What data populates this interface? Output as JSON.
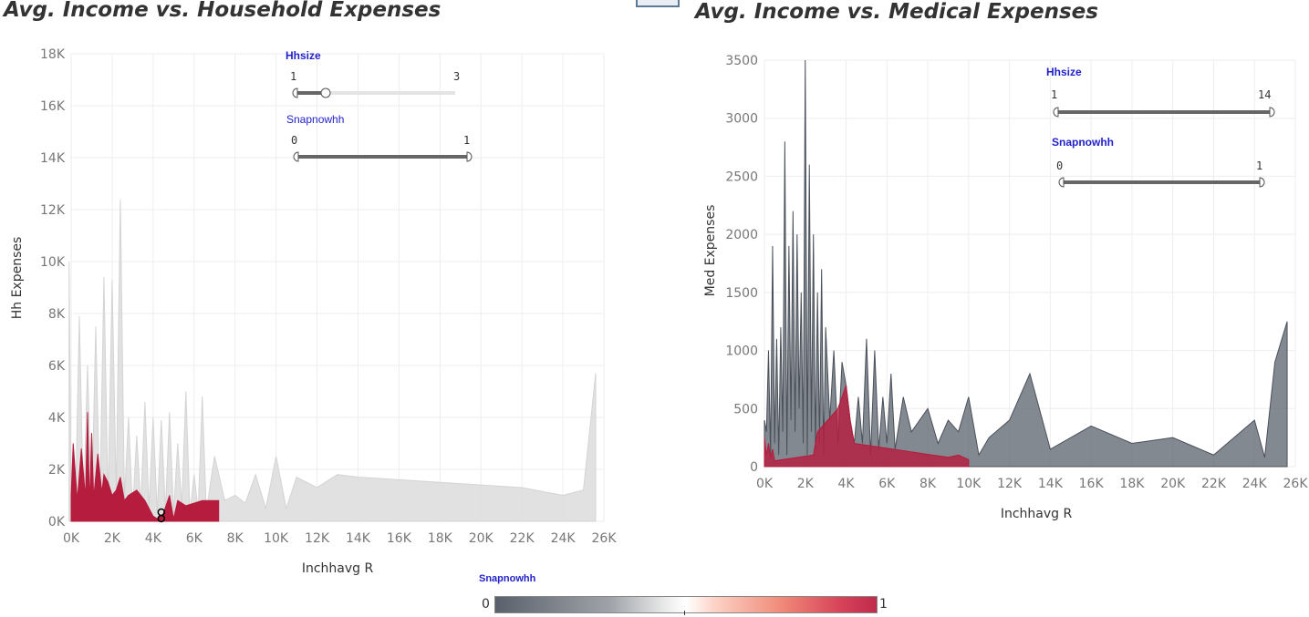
{
  "titles": {
    "left": "Avg. Income vs. Household Expenses",
    "right": "Avg. Income vs. Medical Expenses"
  },
  "colors": {
    "snap1": "#b51c3d",
    "snap0_left": "#dedede",
    "snap0_right": "#5a616c",
    "grid": "#eeeeee"
  },
  "chart_data": [
    {
      "type": "area",
      "title": "Avg. Income vs. Household Expenses",
      "xlabel": "Inchhavg R",
      "ylabel": "Hh Expenses",
      "xlim": [
        0,
        26000
      ],
      "ylim": [
        0,
        18000
      ],
      "x_ticks": [
        "0K",
        "2K",
        "4K",
        "6K",
        "8K",
        "10K",
        "12K",
        "14K",
        "16K",
        "18K",
        "20K",
        "22K",
        "24K",
        "26K"
      ],
      "y_ticks": [
        "0K",
        "2K",
        "4K",
        "6K",
        "8K",
        "10K",
        "12K",
        "14K",
        "16K",
        "18K"
      ],
      "grid": true,
      "series": [
        {
          "x": [
            -100,
            0,
            200,
            400,
            600,
            800,
            1000,
            1200,
            1400,
            1600,
            1800,
            2000,
            2200,
            2400,
            2600,
            2800,
            3000,
            3200,
            3400,
            3600,
            3800,
            4000,
            4200,
            4400,
            4600,
            4800,
            5000,
            5200,
            5400,
            5600,
            5800,
            6000,
            6200,
            6400,
            6600,
            6800,
            7000,
            7500,
            8000,
            8500,
            9000,
            9500,
            10000,
            10500,
            11000,
            12000,
            13000,
            14000,
            16000,
            18000,
            20000,
            22000,
            24000,
            25000,
            25600
          ],
          "values": [
            10000,
            500,
            300,
            7900,
            400,
            6000,
            300,
            7500,
            600,
            9400,
            700,
            9300,
            1000,
            12400,
            900,
            4000,
            400,
            3300,
            600,
            4600,
            500,
            4000,
            300,
            3900,
            400,
            4200,
            300,
            3000,
            600,
            5000,
            300,
            1800,
            400,
            4800,
            300,
            1500,
            2500,
            800,
            1000,
            700,
            1800,
            500,
            2500,
            500,
            1700,
            1300,
            1800,
            1700,
            1600,
            1500,
            1400,
            1300,
            1000,
            1200,
            5700
          ]
        },
        {
          "name": "1",
          "x": [
            0,
            100,
            300,
            500,
            700,
            800,
            900,
            1000,
            1100,
            1300,
            1500,
            1600,
            1800,
            2000,
            2200,
            2400,
            2600,
            2800,
            3200,
            3600,
            4000,
            4200,
            4400,
            4500,
            4800,
            5000,
            5200,
            5600,
            6000,
            6400,
            6800,
            7200
          ],
          "values": [
            1000,
            3000,
            800,
            2800,
            900,
            4200,
            600,
            3400,
            900,
            2600,
            1100,
            1800,
            1500,
            1000,
            1200,
            1700,
            800,
            1000,
            1200,
            800,
            200,
            100,
            200,
            300,
            1000,
            100,
            800,
            600,
            700,
            800,
            800,
            800
          ]
        }
      ],
      "marker": {
        "x": 4400,
        "y": 0
      }
    },
    {
      "type": "area",
      "title": "Avg. Income vs. Medical Expenses",
      "xlabel": "Inchhavg R",
      "ylabel": "Med Expenses",
      "xlim": [
        0,
        26000
      ],
      "ylim": [
        0,
        3500
      ],
      "x_ticks": [
        "0K",
        "2K",
        "4K",
        "6K",
        "8K",
        "10K",
        "12K",
        "14K",
        "16K",
        "18K",
        "20K",
        "22K",
        "24K",
        "26K"
      ],
      "y_ticks": [
        "0",
        "500",
        "1000",
        "1500",
        "2000",
        "2500",
        "3000",
        "3500"
      ],
      "grid": true,
      "series": [
        {
          "x": [
            0,
            100,
            200,
            300,
            400,
            500,
            600,
            700,
            800,
            900,
            1000,
            1100,
            1200,
            1300,
            1400,
            1500,
            1600,
            1700,
            1800,
            1900,
            2000,
            2100,
            2200,
            2300,
            2400,
            2500,
            2600,
            2700,
            2800,
            2900,
            3000,
            3200,
            3400,
            3600,
            3800,
            4000,
            4200,
            4400,
            4600,
            4800,
            5000,
            5200,
            5400,
            5600,
            5800,
            6000,
            6200,
            6400,
            6800,
            7200,
            7600,
            8000,
            8500,
            9000,
            9500,
            10000,
            10500,
            11000,
            12000,
            13000,
            14000,
            16000,
            18000,
            20000,
            22000,
            24000,
            24500,
            25000,
            25600
          ],
          "values": [
            400,
            300,
            1000,
            100,
            1900,
            200,
            1100,
            100,
            1200,
            300,
            2800,
            100,
            1900,
            400,
            2200,
            300,
            2000,
            500,
            1500,
            200,
            3500,
            100,
            2600,
            300,
            2000,
            150,
            1500,
            200,
            1700,
            100,
            1200,
            400,
            1000,
            200,
            900,
            700,
            400,
            200,
            600,
            200,
            1100,
            100,
            1000,
            150,
            600,
            200,
            800,
            150,
            600,
            300,
            400,
            500,
            200,
            400,
            300,
            600,
            100,
            250,
            400,
            800,
            150,
            350,
            200,
            250,
            100,
            400,
            80,
            900,
            1250
          ]
        },
        {
          "name": "1",
          "x": [
            0,
            100,
            200,
            300,
            400,
            500,
            2400,
            2600,
            3600,
            3800,
            4000,
            4200,
            4400,
            9000,
            9500,
            10000
          ],
          "values": [
            250,
            100,
            200,
            80,
            150,
            50,
            100,
            300,
            500,
            600,
            700,
            400,
            200,
            80,
            100,
            60
          ]
        }
      ]
    }
  ],
  "sliders_left": {
    "hhsize": {
      "title": "Hhsize",
      "min": "1",
      "max": "3"
    },
    "snap": {
      "title": "Snapnowhh",
      "min": "0",
      "max": "1"
    }
  },
  "sliders_right": {
    "hhsize": {
      "title": "Hhsize",
      "min": "1",
      "max": "14"
    },
    "snap": {
      "title": "Snapnowhh",
      "min": "0",
      "max": "1"
    }
  },
  "legend": {
    "title": "Snapnowhh",
    "min": "0",
    "max": "1"
  }
}
